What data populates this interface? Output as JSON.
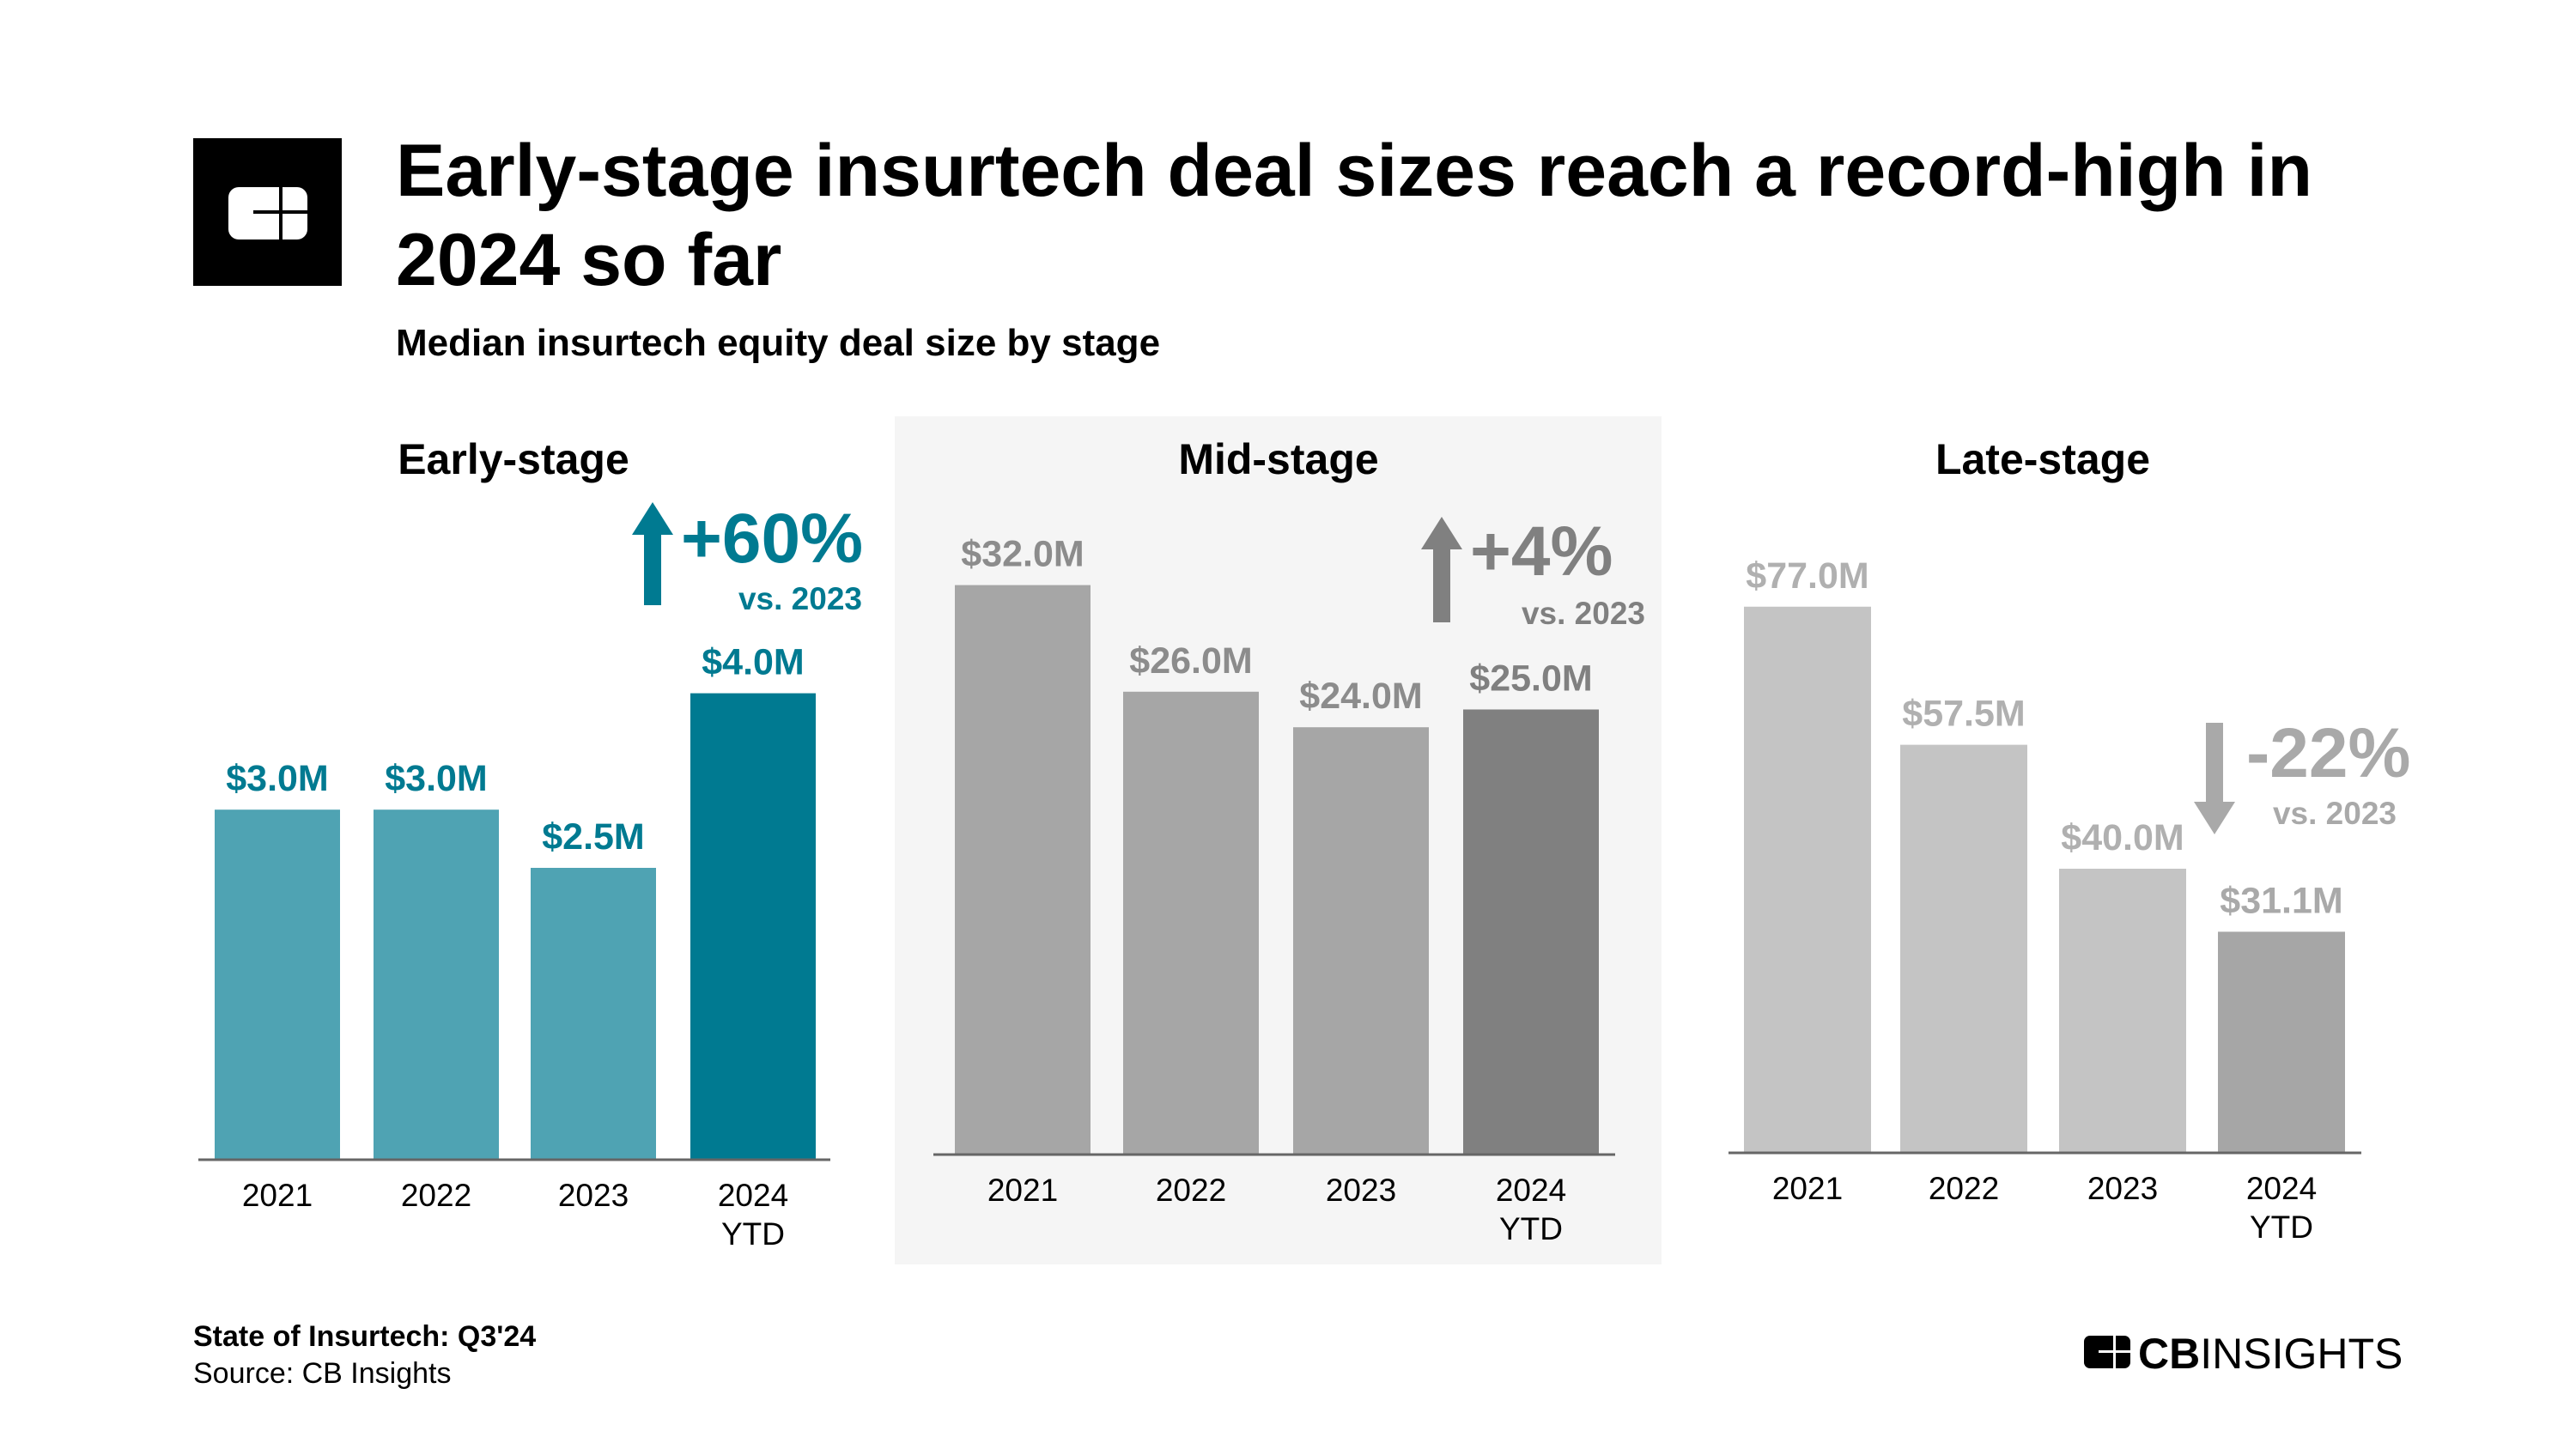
{
  "header": {
    "title_line1": "Early-stage insurtech deal sizes reach a record-high in",
    "title_line2": "2024 so far",
    "subtitle": "Median insurtech equity deal size by stage"
  },
  "footer": {
    "report": "State of Insurtech: Q3'24",
    "source": "Source: CB Insights",
    "brand_logo": "CBINSIGHTS"
  },
  "chart_data": [
    {
      "type": "bar",
      "title": "Early-stage",
      "categories": [
        "2021",
        "2022",
        "2023",
        "2024 YTD"
      ],
      "values": [
        3.0,
        3.0,
        2.5,
        4.0
      ],
      "unit": "$M",
      "labels": [
        "$3.0M",
        "$3.0M",
        "$2.5M",
        "$4.0M"
      ],
      "colors": [
        "#4fa3b3",
        "#4fa3b3",
        "#4fa3b3",
        "#007a91"
      ],
      "annotation": {
        "change": "+60%",
        "vs": "vs. 2023",
        "direction": "up",
        "color": "#007a91"
      },
      "ylim": [
        0,
        4.5
      ]
    },
    {
      "type": "bar",
      "title": "Mid-stage",
      "categories": [
        "2021",
        "2022",
        "2023",
        "2024 YTD"
      ],
      "values": [
        32.0,
        26.0,
        24.0,
        25.0
      ],
      "unit": "$M",
      "labels": [
        "$32.0M",
        "$26.0M",
        "$24.0M",
        "$25.0M"
      ],
      "colors": [
        "#a6a6a6",
        "#a6a6a6",
        "#a6a6a6",
        "#808080"
      ],
      "annotation": {
        "change": "+4%",
        "vs": "vs. 2023",
        "direction": "up",
        "color": "#808080"
      },
      "ylim": [
        0,
        36
      ]
    },
    {
      "type": "bar",
      "title": "Late-stage",
      "categories": [
        "2021",
        "2022",
        "2023",
        "2024 YTD"
      ],
      "values": [
        77.0,
        57.5,
        40.0,
        31.1
      ],
      "unit": "$M",
      "labels": [
        "$77.0M",
        "$57.5M",
        "$40.0M",
        "$31.1M"
      ],
      "colors": [
        "#c4c4c4",
        "#c4c4c4",
        "#c4c4c4",
        "#a6a6a6"
      ],
      "annotation": {
        "change": "-22%",
        "vs": "vs. 2023",
        "direction": "down",
        "color": "#a9a9a9"
      },
      "ylim": [
        0,
        85
      ]
    }
  ]
}
